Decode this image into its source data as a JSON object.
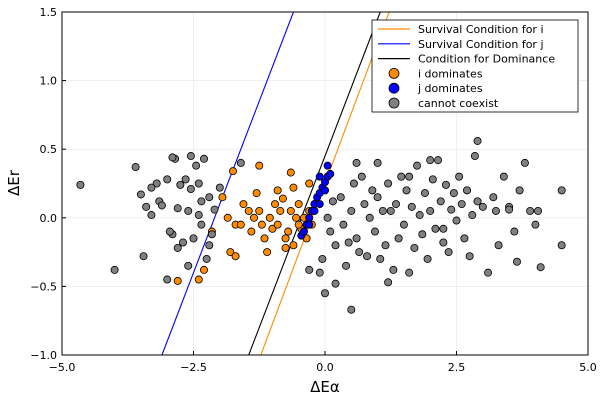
{
  "chart_data": {
    "type": "scatter",
    "title": "",
    "xlabel": "ΔEα",
    "ylabel": "ΔEr",
    "xlim": [
      -5,
      5
    ],
    "ylim": [
      -1,
      1.5
    ],
    "xticks": [
      -5,
      -2.5,
      0,
      2.5,
      5
    ],
    "xtick_labels": [
      "−5.0",
      "−2.5",
      "0.0",
      "2.5",
      "5.0"
    ],
    "yticks": [
      -1,
      -0.5,
      0,
      0.5,
      1,
      1.5
    ],
    "ytick_labels": [
      "−1.0",
      "−0.5",
      "0.0",
      "0.5",
      "1.0",
      "1.5"
    ],
    "grid": true,
    "legend_position": "top-right",
    "lines": [
      {
        "name": "Survival Condition for i",
        "color": "#ff8c00",
        "x": [
          -1.22,
          1.22
        ],
        "y": [
          -1.0,
          1.5
        ]
      },
      {
        "name": "Survival Condition for j",
        "color": "#0000ff",
        "x": [
          -3.1,
          -0.6
        ],
        "y": [
          -1.0,
          1.5
        ]
      },
      {
        "name": "Condition for Dominance",
        "color": "#000000",
        "x": [
          -1.45,
          1.05
        ],
        "y": [
          -1.0,
          1.5
        ]
      }
    ],
    "series": [
      {
        "name": "i dominates",
        "color": "#ff8c00",
        "points": [
          [
            -2.8,
            -0.46
          ],
          [
            -2.4,
            -0.45
          ],
          [
            -2.3,
            -0.38
          ],
          [
            -2.15,
            -0.1
          ],
          [
            -1.8,
            -0.25
          ],
          [
            -1.7,
            -0.28
          ],
          [
            -1.75,
            0.34
          ],
          [
            -1.95,
            0.15
          ],
          [
            -1.85,
            0.0
          ],
          [
            -1.7,
            -0.05
          ],
          [
            -1.6,
            -0.05
          ],
          [
            -1.55,
            0.1
          ],
          [
            -1.45,
            0.05
          ],
          [
            -1.4,
            -0.1
          ],
          [
            -1.35,
            0.0
          ],
          [
            -1.3,
            0.18
          ],
          [
            -1.25,
            0.05
          ],
          [
            -1.2,
            -0.05
          ],
          [
            -1.15,
            -0.15
          ],
          [
            -1.1,
            -0.25
          ],
          [
            -1.05,
            0.0
          ],
          [
            -1.0,
            -0.08
          ],
          [
            -0.95,
            0.1
          ],
          [
            -0.9,
            -0.05
          ],
          [
            -0.85,
            0.05
          ],
          [
            -0.8,
            0.14
          ],
          [
            -0.75,
            -0.15
          ],
          [
            -0.7,
            -0.1
          ],
          [
            -0.65,
            0.05
          ],
          [
            -0.6,
            -0.2
          ],
          [
            -0.55,
            0.0
          ],
          [
            -0.5,
            0.1
          ],
          [
            -0.45,
            -0.08
          ],
          [
            -0.4,
            0.0
          ],
          [
            -0.35,
            -0.15
          ],
          [
            -0.3,
            0.05
          ],
          [
            -0.25,
            -0.05
          ],
          [
            -0.2,
            0.1
          ],
          [
            -0.6,
            0.22
          ],
          [
            -0.65,
            0.33
          ],
          [
            -1.25,
            0.38
          ],
          [
            -0.9,
            0.2
          ],
          [
            -0.75,
            -0.22
          ],
          [
            -0.5,
            -0.05
          ],
          [
            -0.3,
            0.25
          ]
        ]
      },
      {
        "name": "j dominates",
        "color": "#0000ff",
        "points": [
          [
            -0.45,
            -0.13
          ],
          [
            -0.4,
            -0.1
          ],
          [
            -0.35,
            -0.05
          ],
          [
            -0.3,
            0.0
          ],
          [
            -0.25,
            0.05
          ],
          [
            -0.2,
            0.1
          ],
          [
            -0.15,
            0.15
          ],
          [
            -0.1,
            0.18
          ],
          [
            -0.05,
            0.22
          ],
          [
            0.0,
            0.26
          ],
          [
            0.05,
            0.3
          ],
          [
            0.1,
            0.32
          ],
          [
            0.05,
            0.38
          ],
          [
            -0.1,
            0.3
          ],
          [
            -0.2,
            0.05
          ],
          [
            -0.3,
            -0.05
          ],
          [
            0.0,
            0.2
          ],
          [
            -0.1,
            0.1
          ]
        ]
      },
      {
        "name": "cannot coexist",
        "color": "#808080",
        "points": [
          [
            -4.65,
            0.24
          ],
          [
            -4.0,
            -0.38
          ],
          [
            -3.6,
            0.37
          ],
          [
            -3.5,
            0.17
          ],
          [
            -3.45,
            -0.28
          ],
          [
            -3.4,
            0.08
          ],
          [
            -3.3,
            0.02
          ],
          [
            -3.2,
            0.25
          ],
          [
            -3.15,
            0.12
          ],
          [
            -3.1,
            0.09
          ],
          [
            -3.0,
            0.28
          ],
          [
            -2.9,
            -0.12
          ],
          [
            -2.85,
            0.43
          ],
          [
            -2.8,
            0.07
          ],
          [
            -2.75,
            0.24
          ],
          [
            -2.7,
            -0.18
          ],
          [
            -2.65,
            0.28
          ],
          [
            -2.6,
            0.05
          ],
          [
            -2.55,
            0.21
          ],
          [
            -2.5,
            -0.15
          ],
          [
            -2.45,
            0.38
          ],
          [
            -2.4,
            0.02
          ],
          [
            -2.35,
            0.12
          ],
          [
            -2.3,
            0.43
          ],
          [
            -2.25,
            -0.3
          ],
          [
            -2.2,
            0.15
          ],
          [
            -2.15,
            -0.12
          ],
          [
            -2.1,
            0.06
          ],
          [
            -2.9,
            0.44
          ],
          [
            -2.95,
            -0.1
          ],
          [
            -3.0,
            -0.45
          ],
          [
            -2.8,
            -0.22
          ],
          [
            -2.6,
            -0.35
          ],
          [
            -2.4,
            0.25
          ],
          [
            -2.2,
            -0.2
          ],
          [
            -2.0,
            0.22
          ],
          [
            -1.6,
            0.4
          ],
          [
            -2.35,
            -0.05
          ],
          [
            -3.3,
            0.22
          ],
          [
            -2.55,
            0.45
          ],
          [
            0.05,
            0.0
          ],
          [
            0.1,
            -0.1
          ],
          [
            0.15,
            0.12
          ],
          [
            0.2,
            -0.2
          ],
          [
            0.3,
            0.15
          ],
          [
            0.35,
            -0.05
          ],
          [
            0.4,
            -0.35
          ],
          [
            0.45,
            -0.18
          ],
          [
            0.5,
            0.05
          ],
          [
            0.55,
            0.25
          ],
          [
            0.6,
            -0.15
          ],
          [
            0.65,
            -0.25
          ],
          [
            0.7,
            0.3
          ],
          [
            0.75,
            0.1
          ],
          [
            0.8,
            -0.28
          ],
          [
            0.85,
            0.0
          ],
          [
            0.9,
            0.2
          ],
          [
            0.95,
            -0.1
          ],
          [
            1.0,
            0.15
          ],
          [
            1.05,
            -0.3
          ],
          [
            1.1,
            0.05
          ],
          [
            1.15,
            -0.2
          ],
          [
            1.2,
            0.25
          ],
          [
            1.25,
            0.05
          ],
          [
            1.3,
            -0.38
          ],
          [
            1.35,
            0.1
          ],
          [
            1.4,
            -0.15
          ],
          [
            1.45,
            0.3
          ],
          [
            1.5,
            -0.05
          ],
          [
            1.55,
            0.2
          ],
          [
            1.6,
            -0.4
          ],
          [
            1.65,
            0.08
          ],
          [
            1.7,
            -0.22
          ],
          [
            1.75,
            0.38
          ],
          [
            1.8,
            0.02
          ],
          [
            1.85,
            -0.12
          ],
          [
            1.9,
            0.18
          ],
          [
            1.95,
            -0.3
          ],
          [
            2.0,
            0.05
          ],
          [
            2.05,
            0.28
          ],
          [
            2.1,
            -0.08
          ],
          [
            2.15,
            0.42
          ],
          [
            2.2,
            0.12
          ],
          [
            2.25,
            -0.18
          ],
          [
            2.3,
            0.24
          ],
          [
            2.35,
            -0.25
          ],
          [
            2.4,
            0.06
          ],
          [
            2.45,
            0.18
          ],
          [
            2.5,
            -0.02
          ],
          [
            2.55,
            0.3
          ],
          [
            2.6,
            0.1
          ],
          [
            2.65,
            -0.15
          ],
          [
            2.7,
            0.2
          ],
          [
            2.75,
            -0.28
          ],
          [
            2.8,
            0.02
          ],
          [
            2.85,
            0.45
          ],
          [
            2.9,
            0.12
          ],
          [
            3.0,
            0.08
          ],
          [
            3.1,
            -0.4
          ],
          [
            3.2,
            0.15
          ],
          [
            3.25,
            0.05
          ],
          [
            3.3,
            -0.2
          ],
          [
            3.4,
            0.3
          ],
          [
            3.5,
            0.08
          ],
          [
            3.6,
            -0.1
          ],
          [
            3.7,
            0.2
          ],
          [
            3.8,
            0.4
          ],
          [
            3.9,
            0.05
          ],
          [
            4.0,
            -0.05
          ],
          [
            4.1,
            -0.36
          ],
          [
            4.5,
            0.2
          ],
          [
            4.5,
            -0.2
          ],
          [
            2.9,
            0.56
          ],
          [
            1.2,
            -0.47
          ],
          [
            0.5,
            -0.67
          ],
          [
            0.0,
            -0.55
          ],
          [
            -0.3,
            -0.38
          ],
          [
            -0.1,
            -0.4
          ],
          [
            0.2,
            -0.48
          ],
          [
            -0.05,
            -0.3
          ],
          [
            0.6,
            0.4
          ],
          [
            1.0,
            0.4
          ],
          [
            1.6,
            0.3
          ],
          [
            2.0,
            0.42
          ],
          [
            3.65,
            -0.32
          ],
          [
            4.05,
            0.05
          ],
          [
            3.5,
            0.06
          ],
          [
            2.25,
            -0.08
          ]
        ]
      }
    ]
  }
}
